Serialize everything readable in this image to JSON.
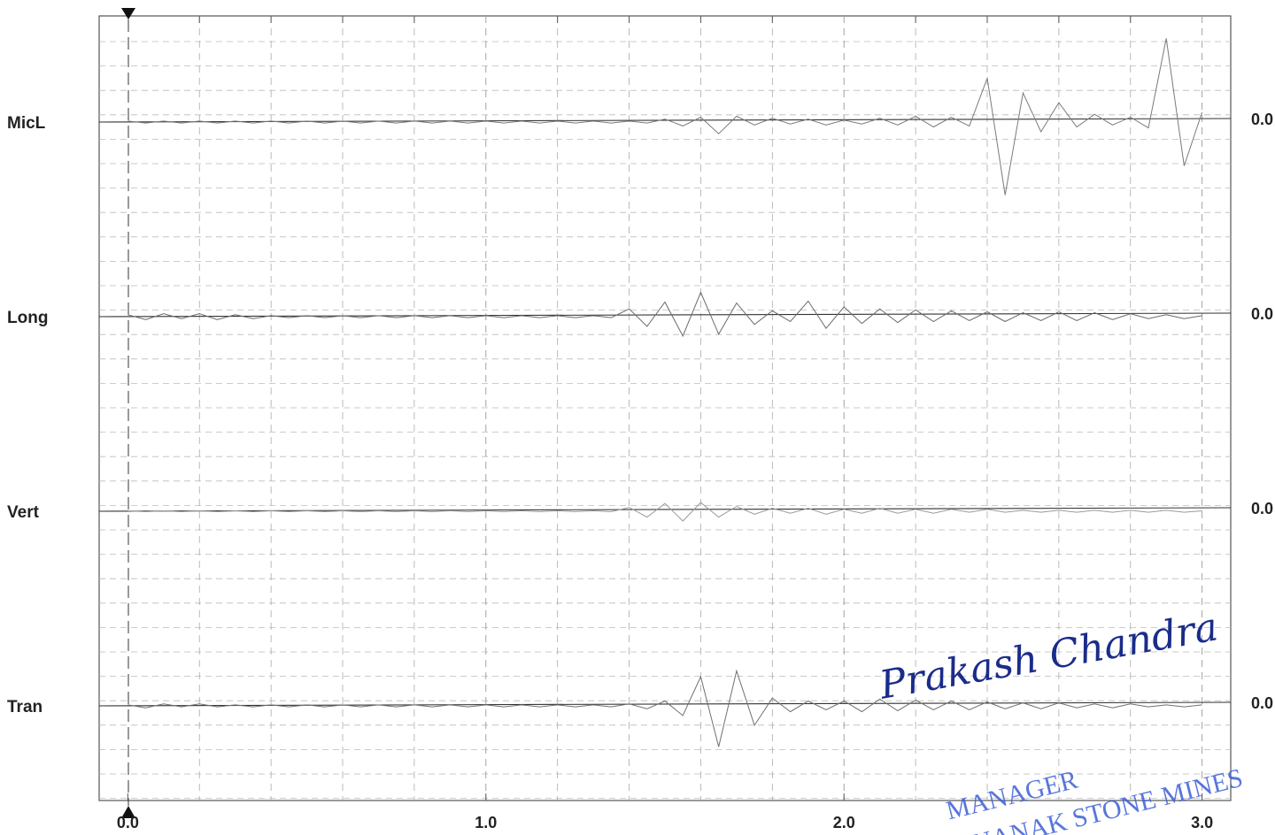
{
  "chart_data": {
    "type": "line",
    "x": [
      0,
      0.05,
      0.1,
      0.15,
      0.2,
      0.25,
      0.3,
      0.35,
      0.4,
      0.45,
      0.5,
      0.55,
      0.6,
      0.65,
      0.7,
      0.75,
      0.8,
      0.85,
      0.9,
      0.95,
      1.0,
      1.05,
      1.1,
      1.15,
      1.2,
      1.25,
      1.3,
      1.35,
      1.4,
      1.45,
      1.5,
      1.55,
      1.6,
      1.65,
      1.7,
      1.75,
      1.8,
      1.85,
      1.9,
      1.95,
      2.0,
      2.05,
      2.1,
      2.15,
      2.2,
      2.25,
      2.3,
      2.35,
      2.4,
      2.45,
      2.5,
      2.55,
      2.6,
      2.65,
      2.7,
      2.75,
      2.8,
      2.85,
      2.9,
      2.95,
      3.0
    ],
    "xlim": [
      -0.08,
      3.08
    ],
    "xticks": [
      {
        "value": 0,
        "label": "0.0"
      },
      {
        "value": 1,
        "label": "1.0"
      },
      {
        "value": 2,
        "label": "2.0"
      },
      {
        "value": 3,
        "label": "3.0"
      }
    ],
    "minor_xticks": [
      0.2,
      0.4,
      0.6,
      0.8,
      1.2,
      1.4,
      1.6,
      1.8,
      2.2,
      2.4,
      2.6,
      2.8
    ],
    "series": [
      {
        "name": "MicL",
        "right_label": "0.0",
        "color": "#7a7a7a",
        "ylim": [
          -1,
          1
        ],
        "values": [
          0.01,
          -0.01,
          0.01,
          -0.01,
          0.01,
          -0.01,
          0.01,
          -0.01,
          0.01,
          -0.01,
          0.01,
          -0.01,
          0.01,
          -0.01,
          0.01,
          -0.01,
          0.01,
          -0.01,
          0.01,
          -0.01,
          0.01,
          -0.01,
          0.01,
          -0.01,
          0.01,
          -0.01,
          0.01,
          -0.01,
          0.01,
          -0.01,
          0.03,
          -0.04,
          0.05,
          -0.12,
          0.06,
          -0.03,
          0.04,
          -0.02,
          0.03,
          -0.03,
          0.02,
          -0.02,
          0.04,
          -0.03,
          0.06,
          -0.05,
          0.05,
          -0.04,
          0.45,
          -0.75,
          0.3,
          -0.1,
          0.2,
          -0.05,
          0.08,
          -0.03,
          0.05,
          -0.06,
          0.86,
          -0.45,
          0.1
        ]
      },
      {
        "name": "Long",
        "right_label": "0.0",
        "color": "#6a6a6a",
        "ylim": [
          -1,
          1
        ],
        "values": [
          0.02,
          -0.03,
          0.03,
          -0.02,
          0.03,
          -0.03,
          0.02,
          -0.02,
          0.01,
          -0.01,
          0.01,
          -0.01,
          0.01,
          -0.01,
          0.01,
          -0.01,
          0.01,
          -0.01,
          0.01,
          -0.01,
          0.01,
          -0.01,
          0.01,
          -0.01,
          0.01,
          -0.01,
          0.01,
          -0.01,
          0.08,
          -0.1,
          0.15,
          -0.2,
          0.25,
          -0.18,
          0.14,
          -0.08,
          0.06,
          -0.05,
          0.16,
          -0.12,
          0.1,
          -0.07,
          0.08,
          -0.06,
          0.07,
          -0.05,
          0.06,
          -0.04,
          0.05,
          -0.05,
          0.04,
          -0.04,
          0.05,
          -0.04,
          0.04,
          -0.03,
          0.03,
          -0.02,
          0.02,
          -0.02,
          0.01
        ]
      },
      {
        "name": "Vert",
        "right_label": "0.0",
        "color": "#9a9a9a",
        "ylim": [
          -1,
          1
        ],
        "values": [
          0.005,
          -0.005,
          0.005,
          -0.005,
          0.005,
          -0.005,
          0.005,
          -0.005,
          0.005,
          -0.005,
          0.005,
          -0.005,
          0.005,
          -0.005,
          0.005,
          -0.005,
          0.005,
          -0.005,
          0.005,
          -0.005,
          0.005,
          -0.005,
          0.005,
          -0.005,
          0.005,
          -0.005,
          0.005,
          -0.005,
          0.04,
          -0.06,
          0.08,
          -0.1,
          0.09,
          -0.06,
          0.05,
          -0.03,
          0.03,
          -0.02,
          0.03,
          -0.03,
          0.02,
          -0.02,
          0.03,
          -0.02,
          0.02,
          -0.02,
          0.02,
          -0.01,
          0.02,
          -0.01,
          0.01,
          -0.01,
          0.01,
          -0.01,
          0.01,
          -0.01,
          0.01,
          -0.01,
          0.01,
          -0.01,
          0.005
        ]
      },
      {
        "name": "Tran",
        "right_label": "0.0",
        "color": "#707070",
        "ylim": [
          -1,
          1
        ],
        "values": [
          0.01,
          -0.02,
          0.02,
          -0.01,
          0.02,
          -0.01,
          0.01,
          -0.01,
          0.01,
          -0.01,
          0.01,
          -0.01,
          0.01,
          -0.01,
          0.01,
          -0.01,
          0.01,
          -0.01,
          0.01,
          -0.01,
          0.01,
          -0.01,
          0.01,
          -0.01,
          0.01,
          -0.01,
          0.01,
          -0.01,
          0.02,
          -0.03,
          0.05,
          -0.1,
          0.3,
          -0.42,
          0.36,
          -0.2,
          0.08,
          -0.06,
          0.05,
          -0.04,
          0.05,
          -0.06,
          0.07,
          -0.05,
          0.06,
          -0.04,
          0.05,
          -0.04,
          0.04,
          -0.03,
          0.03,
          -0.03,
          0.03,
          -0.02,
          0.02,
          -0.02,
          0.02,
          -0.01,
          0.01,
          -0.01,
          0.01
        ]
      }
    ],
    "signature": "Prakash Chandra",
    "stamp": [
      "MANAGER",
      "NANAK STONE MINES"
    ]
  }
}
